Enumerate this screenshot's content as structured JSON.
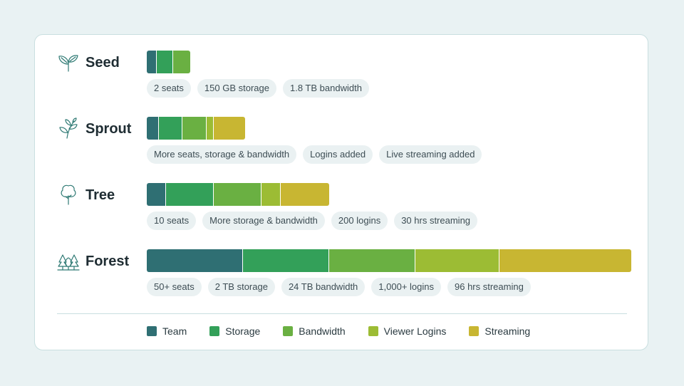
{
  "colors": {
    "team": "#2f6f73",
    "storage": "#33a059",
    "bandwidth": "#6ab042",
    "viewer_logins": "#9cbc34",
    "streaming": "#c8b632",
    "icon": "#2f7a74"
  },
  "chart_data": {
    "type": "bar",
    "orientation": "horizontal",
    "stacked": true,
    "legend_position": "bottom",
    "grid": false,
    "series": [
      {
        "name": "Team",
        "color": "#2f6f73"
      },
      {
        "name": "Storage",
        "color": "#33a059"
      },
      {
        "name": "Bandwidth",
        "color": "#6ab042"
      },
      {
        "name": "Viewer Logins",
        "color": "#9cbc34"
      },
      {
        "name": "Streaming",
        "color": "#c8b632"
      }
    ],
    "tiers": [
      {
        "name": "Seed",
        "icon": "seedling-icon",
        "segments": [
          {
            "series": "Team",
            "value": 2
          },
          {
            "series": "Storage",
            "value": 3.5
          },
          {
            "series": "Bandwidth",
            "value": 3.5
          }
        ],
        "chips": [
          "2 seats",
          "150 GB storage",
          "1.8 TB bandwidth"
        ]
      },
      {
        "name": "Sprout",
        "icon": "sprout-icon",
        "segments": [
          {
            "series": "Team",
            "value": 2.5
          },
          {
            "series": "Storage",
            "value": 5
          },
          {
            "series": "Bandwidth",
            "value": 5
          },
          {
            "series": "Viewer Logins",
            "value": 1.5
          },
          {
            "series": "Streaming",
            "value": 6.5
          }
        ],
        "chips": [
          "More seats, storage & bandwidth",
          "Logins added",
          "Live streaming added"
        ]
      },
      {
        "name": "Tree",
        "icon": "tree-icon",
        "segments": [
          {
            "series": "Team",
            "value": 4
          },
          {
            "series": "Storage",
            "value": 10
          },
          {
            "series": "Bandwidth",
            "value": 10
          },
          {
            "series": "Viewer Logins",
            "value": 4
          },
          {
            "series": "Streaming",
            "value": 10
          }
        ],
        "chips": [
          "10 seats",
          "More storage & bandwidth",
          "200 logins",
          "30 hrs streaming"
        ]
      },
      {
        "name": "Forest",
        "icon": "forest-icon",
        "segments": [
          {
            "series": "Team",
            "value": 20
          },
          {
            "series": "Storage",
            "value": 18
          },
          {
            "series": "Bandwidth",
            "value": 18
          },
          {
            "series": "Viewer Logins",
            "value": 17.5
          },
          {
            "series": "Streaming",
            "value": 27.5
          }
        ],
        "chips": [
          "50+ seats",
          "2 TB storage",
          "24 TB bandwidth",
          "1,000+ logins",
          "96 hrs streaming"
        ]
      }
    ]
  }
}
